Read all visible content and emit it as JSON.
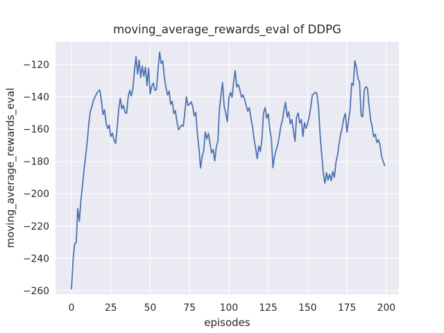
{
  "window": {
    "kind": "matplotlib-figure",
    "background": "#ffffff"
  },
  "chart_data": {
    "type": "line",
    "title": "moving_average_rewards_eval of DDPG",
    "xlabel": "episodes",
    "ylabel": "moving_average_rewards_eval",
    "x_ticks": [
      0,
      25,
      50,
      75,
      100,
      125,
      150,
      175,
      200
    ],
    "x_tick_labels": [
      "0",
      "25",
      "50",
      "75",
      "100",
      "125",
      "150",
      "175",
      "200"
    ],
    "y_ticks": [
      -120,
      -140,
      -160,
      -180,
      -200,
      -220,
      -240,
      -260
    ],
    "y_tick_labels": [
      "−120",
      "−140",
      "−160",
      "−180",
      "−200",
      "−220",
      "−240",
      "−260"
    ],
    "xlim": [
      -10.15,
      208.0
    ],
    "ylim": [
      -262.2,
      -105.8
    ],
    "grid": true,
    "legend_position": "none",
    "axes_rect": [
      80,
      60,
      495,
      364
    ],
    "style": {
      "figure_bg": "#ffffff",
      "axes_bg": "#eaeaf2",
      "grid_color": "#ffffff",
      "line_color": "#4c72b0",
      "text_color": "#262626",
      "line_width": 1.8,
      "grid_width": 1.1
    },
    "series": [
      {
        "name": "moving_average_rewards_eval",
        "x_start": 0,
        "x_step": 1,
        "values": [
          -259.0,
          -241.0,
          -231.0,
          -230.3,
          -209.2,
          -217.1,
          -204.0,
          -195.0,
          -185.0,
          -176.5,
          -168.0,
          -157.0,
          -149.0,
          -146.0,
          -142.0,
          -140.0,
          -138.0,
          -136.5,
          -135.8,
          -142.3,
          -150.9,
          -148.1,
          -156.0,
          -159.6,
          -157.5,
          -164.6,
          -162.5,
          -166.8,
          -168.9,
          -159.6,
          -148.0,
          -140.9,
          -147.4,
          -145.3,
          -149.6,
          -150.3,
          -140.2,
          -135.9,
          -139.5,
          -135.2,
          -124.0,
          -115.1,
          -125.9,
          -117.3,
          -128.1,
          -120.9,
          -127.3,
          -121.6,
          -133.0,
          -122.3,
          -138.1,
          -133.5,
          -131.5,
          -136.0,
          -135.5,
          -123.0,
          -112.3,
          -119.4,
          -117.8,
          -128.0,
          -134.0,
          -138.8,
          -136.5,
          -144.6,
          -142.8,
          -150.3,
          -148.5,
          -155.3,
          -160.4,
          -158.9,
          -157.5,
          -158.2,
          -150.0,
          -140.0,
          -145.3,
          -144.5,
          -143.1,
          -146.0,
          -151.8,
          -149.6,
          -163.2,
          -172.0,
          -184.1,
          -177.0,
          -173.3,
          -161.8,
          -166.1,
          -162.5,
          -169.0,
          -174.7,
          -172.6,
          -179.7,
          -171.0,
          -167.5,
          -147.4,
          -139.0,
          -131.2,
          -146.0,
          -150.0,
          -155.3,
          -140.5,
          -137.3,
          -140.2,
          -131.0,
          -123.7,
          -133.8,
          -132.4,
          -135.9,
          -140.2,
          -138.8,
          -141.7,
          -145.3,
          -148.9,
          -146.7,
          -153.2,
          -158.5,
          -166.1,
          -172.0,
          -178.3,
          -170.4,
          -173.9,
          -166.0,
          -150.0,
          -146.7,
          -153.2,
          -150.6,
          -160.3,
          -166.0,
          -183.9,
          -176.5,
          -173.0,
          -169.7,
          -164.7,
          -158.0,
          -154.6,
          -148.0,
          -143.4,
          -152.5,
          -149.3,
          -156.7,
          -154.0,
          -161.1,
          -167.5,
          -152.4,
          -150.0,
          -156.3,
          -154.0,
          -164.6,
          -156.0,
          -159.6,
          -156.5,
          -152.4,
          -146.7,
          -138.8,
          -138.2,
          -137.1,
          -138.2,
          -147.4,
          -164.4,
          -176.1,
          -187.6,
          -193.4,
          -186.9,
          -191.6,
          -188.0,
          -191.9,
          -186.2,
          -189.8,
          -180.5,
          -176.2,
          -169.0,
          -163.2,
          -158.9,
          -153.2,
          -150.3,
          -161.8,
          -154.6,
          -147.4,
          -131.6,
          -132.8,
          -117.7,
          -121.6,
          -128.7,
          -130.9,
          -151.7,
          -152.4,
          -136.0,
          -133.8,
          -134.5,
          -145.3,
          -153.9,
          -158.5,
          -164.7,
          -163.2,
          -168.3,
          -166.5,
          -169.7,
          -176.9,
          -180.0,
          -182.6
        ]
      }
    ]
  }
}
